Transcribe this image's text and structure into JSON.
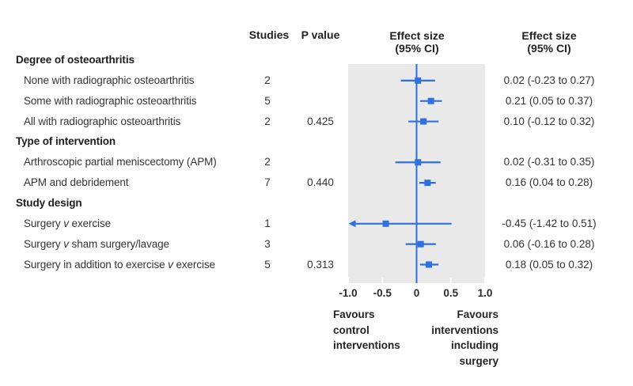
{
  "colors": {
    "accent_blue": "#2f6fdf",
    "plot_bg": "#e9e9e9",
    "text_dark": "#222222",
    "text_body": "#333333"
  },
  "columns": {
    "studies": "Studies",
    "p_value": "P value",
    "effect_plot_line1": "Effect size",
    "effect_plot_line2": "(95% CI)",
    "effect_text_line1": "Effect size",
    "effect_text_line2": "(95% CI)"
  },
  "axis": {
    "tick_labels": [
      "-1.0",
      "-0.5",
      "0",
      "0.5",
      "1.0"
    ],
    "tick_values": [
      -1,
      -0.5,
      0,
      0.5,
      1
    ]
  },
  "footer": {
    "left_lines": [
      "Favours",
      "control",
      "interventions"
    ],
    "right_lines": [
      "Favours",
      "interventions",
      "including",
      "surgery"
    ]
  },
  "chart_data": {
    "type": "forest",
    "xlim": [
      -1.0,
      1.0
    ],
    "zero_line": 0,
    "grid": false,
    "rows": [
      {
        "kind": "group",
        "label": "Degree of osteoarthritis"
      },
      {
        "kind": "item",
        "label": "None with radiographic osteoarthritis",
        "studies": "2",
        "p_value": "",
        "effect": 0.02,
        "ci_low": -0.23,
        "ci_high": 0.27,
        "effect_text": "0.02 (-0.23 to 0.27)"
      },
      {
        "kind": "item",
        "label": "Some with radiographic osteoarthritis",
        "studies": "5",
        "p_value": "",
        "effect": 0.21,
        "ci_low": 0.05,
        "ci_high": 0.37,
        "effect_text": "0.21 (0.05 to 0.37)"
      },
      {
        "kind": "item",
        "label": "All with radiographic osteoarthritis",
        "studies": "2",
        "p_value": "0.425",
        "effect": 0.1,
        "ci_low": -0.12,
        "ci_high": 0.32,
        "effect_text": "0.10 (-0.12 to 0.32)"
      },
      {
        "kind": "group",
        "label": "Type of intervention"
      },
      {
        "kind": "item",
        "label": "Arthroscopic partial meniscectomy (APM)",
        "studies": "2",
        "p_value": "",
        "effect": 0.02,
        "ci_low": -0.31,
        "ci_high": 0.35,
        "effect_text": "0.02 (-0.31 to 0.35)"
      },
      {
        "kind": "item",
        "label": "APM and debridement",
        "studies": "7",
        "p_value": "0.440",
        "effect": 0.16,
        "ci_low": 0.04,
        "ci_high": 0.28,
        "effect_text": "0.16 (0.04 to 0.28)"
      },
      {
        "kind": "group",
        "label": "Study design"
      },
      {
        "kind": "item",
        "label": "Surgery v exercise",
        "studies": "1",
        "p_value": "",
        "effect": -0.45,
        "ci_low": -1.42,
        "ci_high": 0.51,
        "effect_text": "-0.45 (-1.42 to 0.51)"
      },
      {
        "kind": "item",
        "label": "Surgery v sham surgery/lavage",
        "studies": "3",
        "p_value": "",
        "effect": 0.06,
        "ci_low": -0.16,
        "ci_high": 0.28,
        "effect_text": "0.06 (-0.16 to 0.28)"
      },
      {
        "kind": "item",
        "label": "Surgery in addition to exercise v exercise",
        "studies": "5",
        "p_value": "0.313",
        "effect": 0.18,
        "ci_low": 0.05,
        "ci_high": 0.32,
        "effect_text": "0.18 (0.05 to 0.32)"
      }
    ]
  }
}
